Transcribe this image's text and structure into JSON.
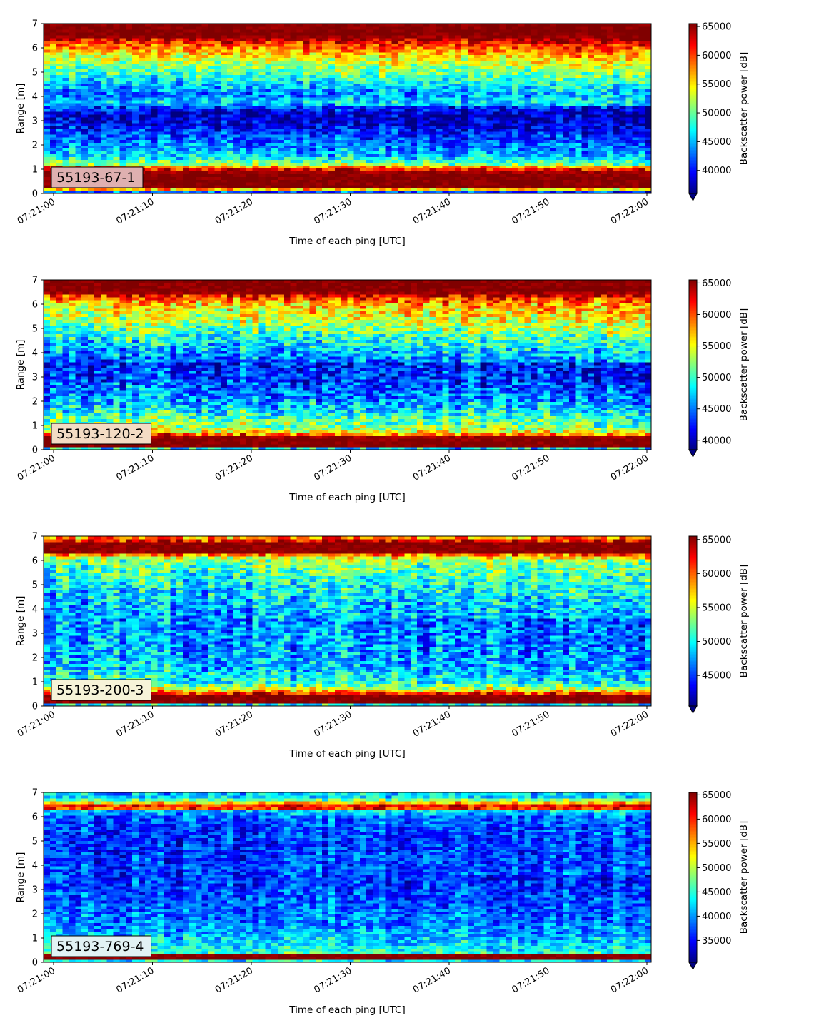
{
  "chart_data": [
    {
      "type": "heatmap",
      "label": "55193-67-1",
      "xlabel": "Time of each ping [UTC]",
      "ylabel": "Range [m]",
      "colorbar_label": "Backscatter power [dB]",
      "colormap": "jet",
      "xticks": [
        "07:21:00",
        "07:21:10",
        "07:21:20",
        "07:21:30",
        "07:21:40",
        "07:21:50",
        "07:22:00"
      ],
      "yticks": [
        0,
        1,
        2,
        3,
        4,
        5,
        6,
        7
      ],
      "ylim": [
        0,
        7
      ],
      "clim": [
        36000,
        65500
      ],
      "colorbar_ticks": [
        40000,
        45000,
        50000,
        55000,
        60000,
        65000
      ],
      "label_box_color": "#dfb0b0",
      "profile": [
        [
          0.0,
          36000
        ],
        [
          0.25,
          65500
        ],
        [
          0.8,
          65500
        ],
        [
          1.05,
          62000
        ],
        [
          1.2,
          53000
        ],
        [
          1.5,
          47000
        ],
        [
          2.0,
          44000
        ],
        [
          2.5,
          42000
        ],
        [
          2.8,
          40000
        ],
        [
          3.2,
          38500
        ],
        [
          3.5,
          41000
        ],
        [
          3.8,
          45000
        ],
        [
          4.1,
          42000
        ],
        [
          4.5,
          45000
        ],
        [
          4.8,
          47000
        ],
        [
          5.2,
          50000
        ],
        [
          5.6,
          53000
        ],
        [
          6.0,
          57000
        ],
        [
          6.3,
          61000
        ],
        [
          6.5,
          65500
        ],
        [
          7.0,
          65500
        ]
      ],
      "trend": 3000,
      "noise": 4500
    },
    {
      "type": "heatmap",
      "label": "55193-120-2",
      "xlabel": "Time of each ping [UTC]",
      "ylabel": "Range [m]",
      "colorbar_label": "Backscatter power [dB]",
      "colormap": "jet",
      "xticks": [
        "07:21:00",
        "07:21:10",
        "07:21:20",
        "07:21:30",
        "07:21:40",
        "07:21:50",
        "07:22:00"
      ],
      "yticks": [
        0,
        1,
        2,
        3,
        4,
        5,
        6,
        7
      ],
      "ylim": [
        0,
        7
      ],
      "clim": [
        38500,
        65500
      ],
      "colorbar_ticks": [
        40000,
        45000,
        50000,
        55000,
        60000,
        65000
      ],
      "label_box_color": "#f3dcc4",
      "profile": [
        [
          0.0,
          38500
        ],
        [
          0.15,
          65500
        ],
        [
          0.5,
          65500
        ],
        [
          0.75,
          56000
        ],
        [
          1.0,
          53000
        ],
        [
          1.5,
          50000
        ],
        [
          2.0,
          47000
        ],
        [
          2.5,
          45500
        ],
        [
          3.0,
          44000
        ],
        [
          3.5,
          43500
        ],
        [
          4.0,
          45500
        ],
        [
          4.5,
          48000
        ],
        [
          5.0,
          51000
        ],
        [
          5.5,
          53500
        ],
        [
          6.0,
          56000
        ],
        [
          6.3,
          60000
        ],
        [
          6.5,
          65500
        ],
        [
          7.0,
          65500
        ]
      ],
      "trend": 2500,
      "noise": 5000
    },
    {
      "type": "heatmap",
      "label": "55193-200-3",
      "xlabel": "Time of each ping [UTC]",
      "ylabel": "Range [m]",
      "colorbar_label": "Backscatter power [dB]",
      "colormap": "jet",
      "xticks": [
        "07:21:00",
        "07:21:10",
        "07:21:20",
        "07:21:30",
        "07:21:40",
        "07:21:50",
        "07:22:00"
      ],
      "yticks": [
        0,
        1,
        2,
        3,
        4,
        5,
        6,
        7
      ],
      "ylim": [
        0,
        7
      ],
      "clim": [
        40500,
        65500
      ],
      "colorbar_ticks": [
        45000,
        50000,
        55000,
        60000,
        65000
      ],
      "label_box_color": "#f6f3d8",
      "profile": [
        [
          0.0,
          40500
        ],
        [
          0.15,
          65500
        ],
        [
          0.45,
          65500
        ],
        [
          0.7,
          56000
        ],
        [
          1.0,
          51000
        ],
        [
          1.5,
          49000
        ],
        [
          2.0,
          48000
        ],
        [
          3.0,
          47500
        ],
        [
          4.0,
          47000
        ],
        [
          5.0,
          49000
        ],
        [
          5.5,
          50500
        ],
        [
          6.0,
          52000
        ],
        [
          6.2,
          56000
        ],
        [
          6.35,
          65500
        ],
        [
          6.75,
          65500
        ],
        [
          6.9,
          58000
        ],
        [
          7.0,
          58000
        ]
      ],
      "trend": 2000,
      "noise": 4500
    },
    {
      "type": "heatmap",
      "label": "55193-769-4",
      "xlabel": "Time of each ping [UTC]",
      "ylabel": "Range [m]",
      "colorbar_label": "Backscatter power [dB]",
      "colormap": "jet",
      "xticks": [
        "07:21:00",
        "07:21:10",
        "07:21:20",
        "07:21:30",
        "07:21:40",
        "07:21:50",
        "07:22:00"
      ],
      "yticks": [
        0,
        1,
        2,
        3,
        4,
        5,
        6,
        7
      ],
      "ylim": [
        0,
        7
      ],
      "clim": [
        30500,
        65500
      ],
      "colorbar_ticks": [
        35000,
        40000,
        45000,
        50000,
        55000,
        60000,
        65000
      ],
      "label_box_color": "#e2f2f4",
      "profile": [
        [
          0.0,
          30500
        ],
        [
          0.15,
          65500
        ],
        [
          0.3,
          65500
        ],
        [
          0.4,
          46000
        ],
        [
          0.8,
          43000
        ],
        [
          1.5,
          40000
        ],
        [
          2.0,
          39000
        ],
        [
          3.0,
          37500
        ],
        [
          4.0,
          36500
        ],
        [
          5.0,
          36000
        ],
        [
          5.5,
          36500
        ],
        [
          6.0,
          37500
        ],
        [
          6.25,
          42000
        ],
        [
          6.4,
          65500
        ],
        [
          6.55,
          55000
        ],
        [
          6.8,
          42000
        ],
        [
          7.0,
          41000
        ]
      ],
      "trend": 1500,
      "noise": 5000
    }
  ]
}
